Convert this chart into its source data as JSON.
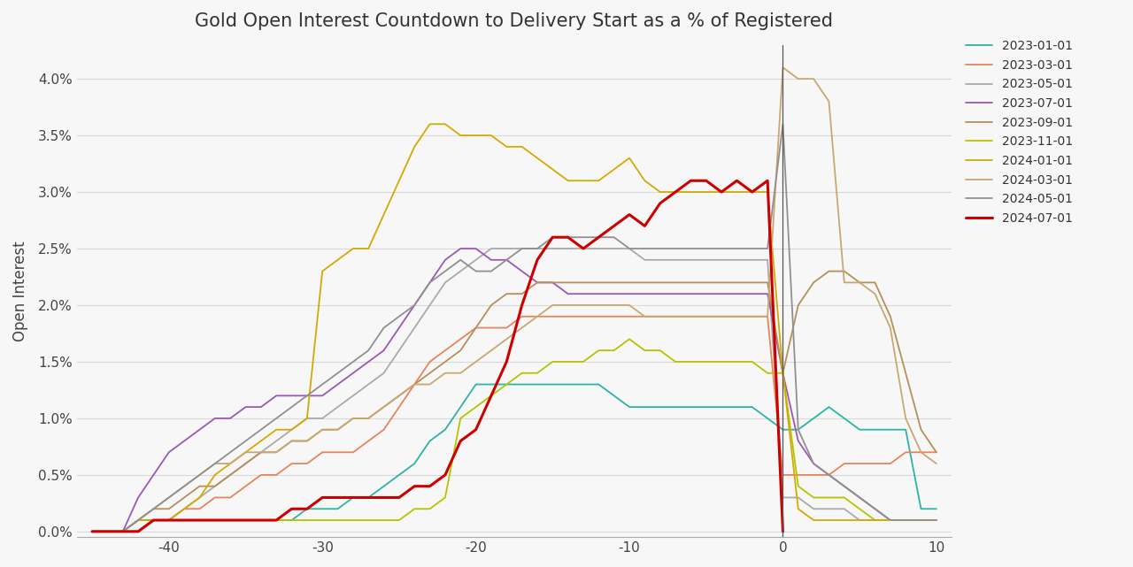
{
  "title": "Gold Open Interest Countdown to Delivery Start as a % of Registered",
  "ylabel": "Open Interest",
  "background_color": "#f7f7f7",
  "series": {
    "2023-01-01": {
      "color": "#2ab5a5",
      "lw": 1.3,
      "x": [
        -45,
        -44,
        -43,
        -42,
        -41,
        -40,
        -39,
        -38,
        -37,
        -36,
        -35,
        -34,
        -33,
        -32,
        -31,
        -30,
        -29,
        -28,
        -27,
        -26,
        -25,
        -24,
        -23,
        -22,
        -21,
        -20,
        -19,
        -18,
        -17,
        -16,
        -15,
        -14,
        -13,
        -12,
        -11,
        -10,
        -9,
        -8,
        -7,
        -6,
        -5,
        -4,
        -3,
        -2,
        -1,
        0,
        1,
        2,
        3,
        4,
        5,
        6,
        7,
        8,
        9,
        10
      ],
      "y": [
        0.0,
        0.0,
        0.0,
        0.001,
        0.001,
        0.001,
        0.001,
        0.001,
        0.001,
        0.001,
        0.001,
        0.001,
        0.001,
        0.001,
        0.002,
        0.002,
        0.002,
        0.003,
        0.003,
        0.004,
        0.005,
        0.006,
        0.008,
        0.009,
        0.011,
        0.013,
        0.013,
        0.013,
        0.013,
        0.013,
        0.013,
        0.013,
        0.013,
        0.013,
        0.012,
        0.011,
        0.011,
        0.011,
        0.011,
        0.011,
        0.011,
        0.011,
        0.011,
        0.011,
        0.01,
        0.009,
        0.009,
        0.01,
        0.011,
        0.01,
        0.009,
        0.009,
        0.009,
        0.009,
        0.002,
        0.002
      ]
    },
    "2023-03-01": {
      "color": "#e8845c",
      "lw": 1.3,
      "x": [
        -45,
        -44,
        -43,
        -42,
        -41,
        -40,
        -39,
        -38,
        -37,
        -36,
        -35,
        -34,
        -33,
        -32,
        -31,
        -30,
        -29,
        -28,
        -27,
        -26,
        -25,
        -24,
        -23,
        -22,
        -21,
        -20,
        -19,
        -18,
        -17,
        -16,
        -15,
        -14,
        -13,
        -12,
        -11,
        -10,
        -9,
        -8,
        -7,
        -6,
        -5,
        -4,
        -3,
        -2,
        -1,
        0,
        1,
        2,
        3,
        4,
        5,
        6,
        7,
        8,
        9,
        10
      ],
      "y": [
        0.0,
        0.0,
        0.0,
        0.0,
        0.001,
        0.001,
        0.002,
        0.002,
        0.003,
        0.003,
        0.004,
        0.005,
        0.005,
        0.006,
        0.006,
        0.007,
        0.007,
        0.007,
        0.008,
        0.009,
        0.011,
        0.013,
        0.015,
        0.016,
        0.017,
        0.018,
        0.018,
        0.018,
        0.019,
        0.019,
        0.019,
        0.019,
        0.019,
        0.019,
        0.019,
        0.019,
        0.019,
        0.019,
        0.019,
        0.019,
        0.019,
        0.019,
        0.019,
        0.019,
        0.019,
        0.005,
        0.005,
        0.005,
        0.005,
        0.006,
        0.006,
        0.006,
        0.006,
        0.007,
        0.007,
        0.007
      ]
    },
    "2023-05-01": {
      "color": "#aaaaaa",
      "lw": 1.3,
      "x": [
        -45,
        -44,
        -43,
        -42,
        -41,
        -40,
        -39,
        -38,
        -37,
        -36,
        -35,
        -34,
        -33,
        -32,
        -31,
        -30,
        -29,
        -28,
        -27,
        -26,
        -25,
        -24,
        -23,
        -22,
        -21,
        -20,
        -19,
        -18,
        -17,
        -16,
        -15,
        -14,
        -13,
        -12,
        -11,
        -10,
        -9,
        -8,
        -7,
        -6,
        -5,
        -4,
        -3,
        -2,
        -1,
        0,
        1,
        2,
        3,
        4,
        5,
        6,
        7,
        8,
        9,
        10
      ],
      "y": [
        0.0,
        0.0,
        0.0,
        0.0,
        0.001,
        0.001,
        0.002,
        0.003,
        0.004,
        0.005,
        0.006,
        0.007,
        0.008,
        0.009,
        0.01,
        0.01,
        0.011,
        0.012,
        0.013,
        0.014,
        0.016,
        0.018,
        0.02,
        0.022,
        0.023,
        0.024,
        0.025,
        0.025,
        0.025,
        0.025,
        0.025,
        0.025,
        0.025,
        0.025,
        0.025,
        0.025,
        0.024,
        0.024,
        0.024,
        0.024,
        0.024,
        0.024,
        0.024,
        0.024,
        0.024,
        0.003,
        0.003,
        0.002,
        0.002,
        0.002,
        0.001,
        0.001,
        0.001,
        0.001,
        0.001,
        0.001
      ]
    },
    "2023-07-01": {
      "color": "#9b59b6",
      "lw": 1.3,
      "x": [
        -45,
        -44,
        -43,
        -42,
        -41,
        -40,
        -39,
        -38,
        -37,
        -36,
        -35,
        -34,
        -33,
        -32,
        -31,
        -30,
        -29,
        -28,
        -27,
        -26,
        -25,
        -24,
        -23,
        -22,
        -21,
        -20,
        -19,
        -18,
        -17,
        -16,
        -15,
        -14,
        -13,
        -12,
        -11,
        -10,
        -9,
        -8,
        -7,
        -6,
        -5,
        -4,
        -3,
        -2,
        -1,
        0,
        1,
        2,
        3,
        4,
        5,
        6,
        7,
        8,
        9,
        10
      ],
      "y": [
        0.0,
        0.0,
        0.0,
        0.003,
        0.005,
        0.007,
        0.008,
        0.009,
        0.01,
        0.01,
        0.011,
        0.011,
        0.012,
        0.012,
        0.012,
        0.012,
        0.013,
        0.014,
        0.015,
        0.016,
        0.018,
        0.02,
        0.022,
        0.024,
        0.025,
        0.025,
        0.024,
        0.024,
        0.023,
        0.022,
        0.022,
        0.021,
        0.021,
        0.021,
        0.021,
        0.021,
        0.021,
        0.021,
        0.021,
        0.021,
        0.021,
        0.021,
        0.021,
        0.021,
        0.021,
        0.014,
        0.008,
        0.006,
        0.005,
        0.004,
        0.003,
        0.002,
        0.001,
        0.001,
        0.001,
        0.001
      ]
    },
    "2023-09-01": {
      "color": "#b5905a",
      "lw": 1.3,
      "x": [
        -45,
        -44,
        -43,
        -42,
        -41,
        -40,
        -39,
        -38,
        -37,
        -36,
        -35,
        -34,
        -33,
        -32,
        -31,
        -30,
        -29,
        -28,
        -27,
        -26,
        -25,
        -24,
        -23,
        -22,
        -21,
        -20,
        -19,
        -18,
        -17,
        -16,
        -15,
        -14,
        -13,
        -12,
        -11,
        -10,
        -9,
        -8,
        -7,
        -6,
        -5,
        -4,
        -3,
        -2,
        -1,
        0,
        1,
        2,
        3,
        4,
        5,
        6,
        7,
        8,
        9,
        10
      ],
      "y": [
        0.0,
        0.0,
        0.0,
        0.001,
        0.002,
        0.002,
        0.003,
        0.004,
        0.004,
        0.005,
        0.006,
        0.007,
        0.007,
        0.008,
        0.008,
        0.009,
        0.009,
        0.01,
        0.01,
        0.011,
        0.012,
        0.013,
        0.014,
        0.015,
        0.016,
        0.018,
        0.02,
        0.021,
        0.021,
        0.022,
        0.022,
        0.022,
        0.022,
        0.022,
        0.022,
        0.022,
        0.022,
        0.022,
        0.022,
        0.022,
        0.022,
        0.022,
        0.022,
        0.022,
        0.022,
        0.014,
        0.02,
        0.022,
        0.023,
        0.023,
        0.022,
        0.022,
        0.019,
        0.014,
        0.009,
        0.007
      ]
    },
    "2023-11-01": {
      "color": "#b5c400",
      "lw": 1.3,
      "x": [
        -45,
        -44,
        -43,
        -42,
        -41,
        -40,
        -39,
        -38,
        -37,
        -36,
        -35,
        -34,
        -33,
        -32,
        -31,
        -30,
        -29,
        -28,
        -27,
        -26,
        -25,
        -24,
        -23,
        -22,
        -21,
        -20,
        -19,
        -18,
        -17,
        -16,
        -15,
        -14,
        -13,
        -12,
        -11,
        -10,
        -9,
        -8,
        -7,
        -6,
        -5,
        -4,
        -3,
        -2,
        -1,
        0,
        1,
        2,
        3,
        4,
        5,
        6,
        7,
        8,
        9,
        10
      ],
      "y": [
        0.0,
        0.0,
        0.0,
        0.0,
        0.001,
        0.001,
        0.001,
        0.001,
        0.001,
        0.001,
        0.001,
        0.001,
        0.001,
        0.001,
        0.001,
        0.001,
        0.001,
        0.001,
        0.001,
        0.001,
        0.001,
        0.002,
        0.002,
        0.003,
        0.01,
        0.011,
        0.012,
        0.013,
        0.014,
        0.014,
        0.015,
        0.015,
        0.015,
        0.016,
        0.016,
        0.017,
        0.016,
        0.016,
        0.015,
        0.015,
        0.015,
        0.015,
        0.015,
        0.015,
        0.014,
        0.014,
        0.004,
        0.003,
        0.003,
        0.003,
        0.002,
        0.001,
        0.001,
        0.001,
        0.001,
        0.001
      ]
    },
    "2024-01-01": {
      "color": "#d4aa00",
      "lw": 1.3,
      "x": [
        -45,
        -44,
        -43,
        -42,
        -41,
        -40,
        -39,
        -38,
        -37,
        -36,
        -35,
        -34,
        -33,
        -32,
        -31,
        -30,
        -29,
        -28,
        -27,
        -26,
        -25,
        -24,
        -23,
        -22,
        -21,
        -20,
        -19,
        -18,
        -17,
        -16,
        -15,
        -14,
        -13,
        -12,
        -11,
        -10,
        -9,
        -8,
        -7,
        -6,
        -5,
        -4,
        -3,
        -2,
        -1,
        0,
        1,
        2,
        3,
        4,
        5,
        6,
        7,
        8,
        9,
        10
      ],
      "y": [
        0.0,
        0.0,
        0.0,
        0.001,
        0.001,
        0.001,
        0.002,
        0.003,
        0.005,
        0.006,
        0.007,
        0.008,
        0.009,
        0.009,
        0.01,
        0.023,
        0.024,
        0.025,
        0.025,
        0.028,
        0.031,
        0.034,
        0.036,
        0.036,
        0.035,
        0.035,
        0.035,
        0.034,
        0.034,
        0.033,
        0.032,
        0.031,
        0.031,
        0.031,
        0.032,
        0.033,
        0.031,
        0.03,
        0.03,
        0.03,
        0.03,
        0.03,
        0.03,
        0.03,
        0.03,
        0.014,
        0.002,
        0.001,
        0.001,
        0.001,
        0.001,
        0.001,
        0.001,
        0.001,
        0.001,
        0.001
      ]
    },
    "2024-03-01": {
      "color": "#c8a870",
      "lw": 1.3,
      "x": [
        -45,
        -44,
        -43,
        -42,
        -41,
        -40,
        -39,
        -38,
        -37,
        -36,
        -35,
        -34,
        -33,
        -32,
        -31,
        -30,
        -29,
        -28,
        -27,
        -26,
        -25,
        -24,
        -23,
        -22,
        -21,
        -20,
        -19,
        -18,
        -17,
        -16,
        -15,
        -14,
        -13,
        -12,
        -11,
        -10,
        -9,
        -8,
        -7,
        -6,
        -5,
        -4,
        -3,
        -2,
        -1,
        0,
        1,
        2,
        3,
        4,
        5,
        6,
        7,
        8,
        9,
        10
      ],
      "y": [
        0.0,
        0.0,
        0.0,
        0.001,
        0.002,
        0.003,
        0.004,
        0.005,
        0.006,
        0.006,
        0.007,
        0.007,
        0.007,
        0.008,
        0.008,
        0.009,
        0.009,
        0.01,
        0.01,
        0.011,
        0.012,
        0.013,
        0.013,
        0.014,
        0.014,
        0.015,
        0.016,
        0.017,
        0.018,
        0.019,
        0.02,
        0.02,
        0.02,
        0.02,
        0.02,
        0.02,
        0.019,
        0.019,
        0.019,
        0.019,
        0.019,
        0.019,
        0.019,
        0.019,
        0.019,
        0.041,
        0.04,
        0.04,
        0.038,
        0.022,
        0.022,
        0.021,
        0.018,
        0.01,
        0.007,
        0.006
      ]
    },
    "2024-05-01": {
      "color": "#909090",
      "lw": 1.3,
      "x": [
        -45,
        -44,
        -43,
        -42,
        -41,
        -40,
        -39,
        -38,
        -37,
        -36,
        -35,
        -34,
        -33,
        -32,
        -31,
        -30,
        -29,
        -28,
        -27,
        -26,
        -25,
        -24,
        -23,
        -22,
        -21,
        -20,
        -19,
        -18,
        -17,
        -16,
        -15,
        -14,
        -13,
        -12,
        -11,
        -10,
        -9,
        -8,
        -7,
        -6,
        -5,
        -4,
        -3,
        -2,
        -1,
        0,
        1,
        2,
        3,
        4,
        5,
        6,
        7,
        8,
        9,
        10
      ],
      "y": [
        0.0,
        0.0,
        0.0,
        0.001,
        0.002,
        0.003,
        0.004,
        0.005,
        0.006,
        0.007,
        0.008,
        0.009,
        0.01,
        0.011,
        0.012,
        0.013,
        0.014,
        0.015,
        0.016,
        0.018,
        0.019,
        0.02,
        0.022,
        0.023,
        0.024,
        0.023,
        0.023,
        0.024,
        0.025,
        0.025,
        0.026,
        0.026,
        0.026,
        0.026,
        0.026,
        0.025,
        0.025,
        0.025,
        0.025,
        0.025,
        0.025,
        0.025,
        0.025,
        0.025,
        0.025,
        0.036,
        0.009,
        0.006,
        0.005,
        0.004,
        0.003,
        0.002,
        0.001,
        0.001,
        0.001,
        0.001
      ]
    },
    "2024-07-01": {
      "color": "#cc0000",
      "lw": 2.2,
      "x": [
        -45,
        -44,
        -43,
        -42,
        -41,
        -40,
        -39,
        -38,
        -37,
        -36,
        -35,
        -34,
        -33,
        -32,
        -31,
        -30,
        -29,
        -28,
        -27,
        -26,
        -25,
        -24,
        -23,
        -22,
        -21,
        -20,
        -19,
        -18,
        -17,
        -16,
        -15,
        -14,
        -13,
        -12,
        -11,
        -10,
        -9,
        -8,
        -7,
        -6,
        -5,
        -4,
        -3,
        -2,
        -1,
        0
      ],
      "y": [
        0.0,
        0.0,
        0.0,
        0.0,
        0.001,
        0.001,
        0.001,
        0.001,
        0.001,
        0.001,
        0.001,
        0.001,
        0.001,
        0.002,
        0.002,
        0.003,
        0.003,
        0.003,
        0.003,
        0.003,
        0.003,
        0.004,
        0.004,
        0.005,
        0.008,
        0.009,
        0.012,
        0.015,
        0.02,
        0.024,
        0.026,
        0.026,
        0.025,
        0.026,
        0.027,
        0.028,
        0.027,
        0.029,
        0.03,
        0.031,
        0.031,
        0.03,
        0.031,
        0.03,
        0.031,
        0.0
      ]
    }
  },
  "xlim": [
    -46,
    11
  ],
  "ylim": [
    -0.0005,
    0.043
  ],
  "yticks": [
    0.0,
    0.005,
    0.01,
    0.015,
    0.02,
    0.025,
    0.03,
    0.035,
    0.04
  ],
  "ytick_labels": [
    "0.0%",
    "0.5%",
    "1.0%",
    "1.5%",
    "2.0%",
    "2.5%",
    "3.0%",
    "3.5%",
    "4.0%"
  ],
  "xticks": [
    -40,
    -30,
    -20,
    -10,
    0,
    10
  ],
  "vline_x": 0,
  "grid_color": "#d8d8d8",
  "legend_labels": [
    "2023-01-01",
    "2023-03-01",
    "2023-05-01",
    "2023-07-01",
    "2023-09-01",
    "2023-11-01",
    "2024-01-01",
    "2024-03-01",
    "2024-05-01",
    "2024-07-01"
  ]
}
